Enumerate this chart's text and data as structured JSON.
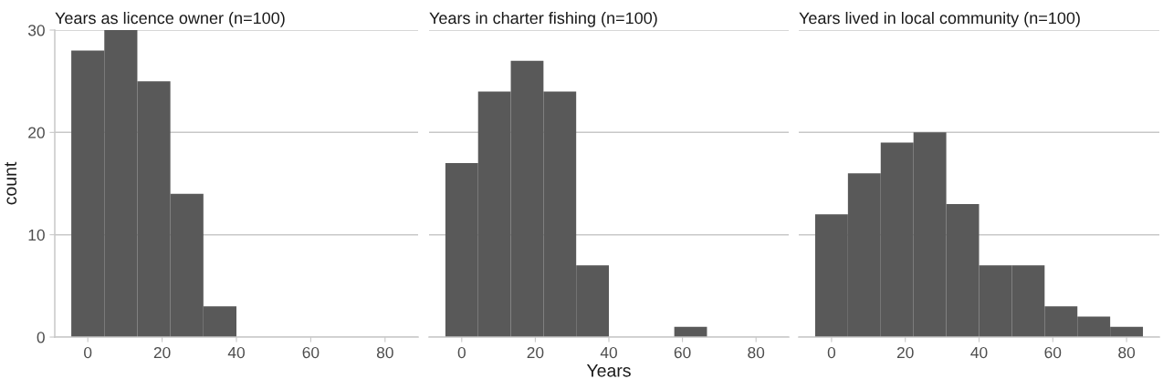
{
  "chart_data": [
    {
      "type": "histogram",
      "title": "Years as licence owner (n=100)",
      "ylabel": "count",
      "color": "#595959",
      "bins": [
        -4.444,
        4.444,
        13.333,
        22.222,
        31.111,
        40,
        48.889,
        57.778,
        66.667,
        75.556,
        84.444
      ],
      "values": [
        28,
        30,
        25,
        14,
        3,
        0,
        0,
        0,
        0,
        0
      ],
      "xlim": [
        -8.889,
        88.889
      ],
      "xticks": [
        0,
        20,
        40,
        60,
        80
      ],
      "ylim": [
        0,
        30
      ],
      "yticks": [
        0,
        10,
        20,
        30
      ],
      "grid": "y"
    },
    {
      "type": "histogram",
      "title": "Years in charter fishing (n=100)",
      "xlabel": "Years",
      "color": "#595959",
      "bins": [
        -4.444,
        4.444,
        13.333,
        22.222,
        31.111,
        40,
        48.889,
        57.778,
        66.667,
        75.556,
        84.444
      ],
      "values": [
        17,
        24,
        27,
        24,
        7,
        0,
        0,
        1,
        0,
        0
      ],
      "xlim": [
        -8.889,
        88.889
      ],
      "xticks": [
        0,
        20,
        40,
        60,
        80
      ],
      "ylim": [
        0,
        30
      ],
      "yticks": [
        0,
        10,
        20,
        30
      ],
      "grid": "y",
      "tick_labels": "x"
    },
    {
      "type": "histogram",
      "title": "Years lived in local community (n=100)",
      "color": "#595959",
      "bins": [
        -4.444,
        4.444,
        13.333,
        22.222,
        31.111,
        40,
        48.889,
        57.778,
        66.667,
        75.556,
        84.444
      ],
      "values": [
        12,
        16,
        19,
        20,
        13,
        7,
        7,
        3,
        2,
        1
      ],
      "xlim": [
        -8.889,
        88.889
      ],
      "xticks": [
        0,
        20,
        40,
        60,
        80
      ],
      "ylim": [
        0,
        30
      ],
      "yticks": [
        0,
        10,
        20,
        30
      ],
      "grid": "y",
      "tick_labels": "x"
    }
  ]
}
